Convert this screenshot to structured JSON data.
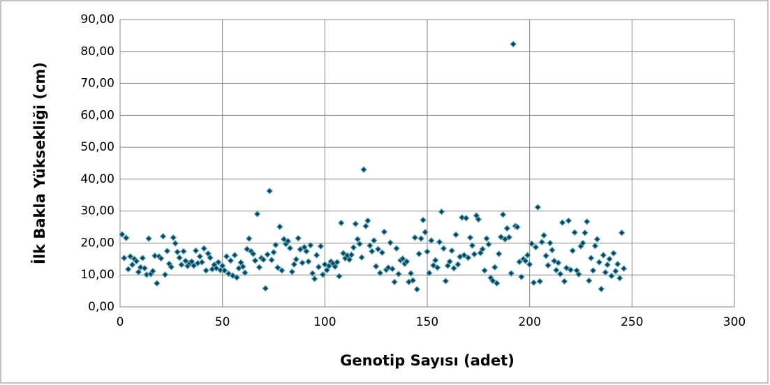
{
  "chart_data": {
    "type": "scatter",
    "x_label": "Genotip Sayısı (adet)",
    "y_label": "İlk Bakla Yüksekliği (cm)",
    "xlim": [
      0,
      300
    ],
    "xticks": [
      0,
      50,
      100,
      150,
      200,
      250,
      300
    ],
    "ylim": [
      0,
      90
    ],
    "yticks": [
      {
        "value": 0,
        "label": "0,00"
      },
      {
        "value": 10,
        "label": "10,00"
      },
      {
        "value": 20,
        "label": "20,00"
      },
      {
        "value": 30,
        "label": "30,00"
      },
      {
        "value": 40,
        "label": "40,00"
      },
      {
        "value": 50,
        "label": "50,00"
      },
      {
        "value": 60,
        "label": "60,00"
      },
      {
        "value": 70,
        "label": "70,00"
      },
      {
        "value": 80,
        "label": "80,00"
      },
      {
        "value": 90,
        "label": "90,00"
      }
    ],
    "grid": true,
    "marker": "diamond",
    "color": "#1f3a4d",
    "edge_color": "#4bacc6",
    "x": [
      1,
      2,
      3,
      4,
      5,
      6,
      7,
      8,
      9,
      10,
      11,
      12,
      13,
      14,
      15,
      16,
      17,
      18,
      19,
      20,
      21,
      22,
      23,
      24,
      25,
      26,
      27,
      28,
      29,
      30,
      31,
      32,
      33,
      34,
      35,
      36,
      37,
      38,
      39,
      40,
      41,
      42,
      43,
      44,
      45,
      46,
      47,
      48,
      49,
      50,
      51,
      52,
      53,
      54,
      55,
      56,
      57,
      58,
      59,
      60,
      61,
      62,
      63,
      64,
      65,
      66,
      67,
      68,
      69,
      70,
      71,
      72,
      73,
      74,
      75,
      76,
      77,
      78,
      79,
      80,
      81,
      82,
      83,
      84,
      85,
      86,
      87,
      88,
      89,
      90,
      91,
      92,
      93,
      94,
      95,
      96,
      97,
      98,
      99,
      100,
      101,
      102,
      103,
      104,
      105,
      106,
      107,
      108,
      109,
      110,
      111,
      112,
      113,
      114,
      115,
      116,
      117,
      118,
      119,
      120,
      121,
      122,
      123,
      124,
      125,
      126,
      127,
      128,
      129,
      130,
      131,
      132,
      133,
      134,
      135,
      136,
      137,
      138,
      139,
      140,
      141,
      142,
      143,
      144,
      145,
      146,
      147,
      148,
      149,
      150,
      151,
      152,
      153,
      154,
      155,
      156,
      157,
      158,
      159,
      160,
      161,
      162,
      163,
      164,
      165,
      166,
      167,
      168,
      169,
      170,
      171,
      172,
      173,
      174,
      175,
      176,
      177,
      178,
      179,
      180,
      181,
      182,
      183,
      184,
      185,
      186,
      187,
      188,
      189,
      190,
      191,
      192,
      193,
      194,
      195,
      196,
      197,
      198,
      199,
      200,
      201,
      202,
      203,
      204,
      205,
      206,
      207,
      208,
      209,
      210,
      211,
      212,
      213,
      214,
      215,
      216,
      217,
      218,
      219,
      220,
      221,
      222,
      223,
      224,
      225,
      226,
      227,
      228,
      229,
      230,
      231,
      232,
      233,
      234,
      235,
      236,
      237,
      238,
      239,
      240,
      241,
      242,
      243,
      244,
      245,
      246
    ],
    "values": [
      22.7,
      15.3,
      21.6,
      11.8,
      15.8,
      13.2,
      15.0,
      14.3,
      10.9,
      12.4,
      15.3,
      12.1,
      10.1,
      21.4,
      10.3,
      11.2,
      16.0,
      7.4,
      15.8,
      15.2,
      22.1,
      10.1,
      17.5,
      13.5,
      12.5,
      21.7,
      19.9,
      17.2,
      15.4,
      13.2,
      17.4,
      14.4,
      12.8,
      13.7,
      14.2,
      12.9,
      17.6,
      13.7,
      15.8,
      14.0,
      18.3,
      11.4,
      16.7,
      15.4,
      11.8,
      13.2,
      12.1,
      14.0,
      11.5,
      12.9,
      11.4,
      15.8,
      10.4,
      14.5,
      9.8,
      16.2,
      9.2,
      12.1,
      13.9,
      12.6,
      10.7,
      18.1,
      21.4,
      17.4,
      16.6,
      14.5,
      29.1,
      12.4,
      15.3,
      14.8,
      5.8,
      16.4,
      36.3,
      14.7,
      17.1,
      19.4,
      12.3,
      25.1,
      11.4,
      21.2,
      19.7,
      20.6,
      18.4,
      11.0,
      13.3,
      14.9,
      21.5,
      18.0,
      13.8,
      18.7,
      17.4,
      14.2,
      19.3,
      10.5,
      8.8,
      16.2,
      12.5,
      19.0,
      10.1,
      13.3,
      11.5,
      12.8,
      14.2,
      13.6,
      12.6,
      14.0,
      9.6,
      26.3,
      16.8,
      15.2,
      16.1,
      14.8,
      16.3,
      18.6,
      26.0,
      21.2,
      19.7,
      15.5,
      43.0,
      25.3,
      27.0,
      19.2,
      17.4,
      20.8,
      12.7,
      18.1,
      10.6,
      17.0,
      23.5,
      11.6,
      12.3,
      20.1,
      11.9,
      7.8,
      18.3,
      10.3,
      14.6,
      15.1,
      13.5,
      14.2,
      7.8,
      10.5,
      8.3,
      21.7,
      5.5,
      16.6,
      21.4,
      27.2,
      23.4,
      17.3,
      10.6,
      20.8,
      13.0,
      14.6,
      12.3,
      20.3,
      29.8,
      18.3,
      8.1,
      12.9,
      14.2,
      17.6,
      12.1,
      22.6,
      13.3,
      15.7,
      28.0,
      16.2,
      27.8,
      15.4,
      21.7,
      19.2,
      16.5,
      28.6,
      27.4,
      16.9,
      18.1,
      11.4,
      21.4,
      19.6,
      9.1,
      8.2,
      12.4,
      7.4,
      16.6,
      21.9,
      28.9,
      21.2,
      24.6,
      21.8,
      10.5,
      82.3,
      25.3,
      25.0,
      14.1,
      9.4,
      15.0,
      14.4,
      16.2,
      13.3,
      19.8,
      7.6,
      18.7,
      31.2,
      8.0,
      20.3,
      22.4,
      16.0,
      13.0,
      20.0,
      17.8,
      14.4,
      11.5,
      13.8,
      10.3,
      26.4,
      8.0,
      12.2,
      27.0,
      11.6,
      17.6,
      23.3,
      11.4,
      10.2,
      19.0,
      20.0,
      23.2,
      26.7,
      8.2,
      15.3,
      11.4,
      19.1,
      21.2,
      14.0,
      5.6,
      16.2,
      10.8,
      13.2,
      15.0,
      9.7,
      16.8,
      11.2,
      13.4,
      9.0,
      23.2,
      12.0
    ]
  }
}
